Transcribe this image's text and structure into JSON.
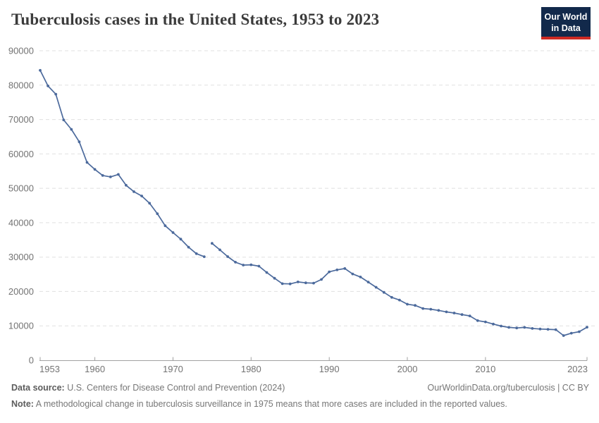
{
  "header": {
    "title": "Tuberculosis cases in the United States, 1953 to 2023",
    "logo": {
      "line1": "Our World",
      "line2": "in Data"
    }
  },
  "chart_data": {
    "type": "line",
    "title": "Tuberculosis cases in the United States, 1953 to 2023",
    "xlabel": "",
    "ylabel": "",
    "xlim": [
      1953,
      2023
    ],
    "ylim": [
      0,
      90000
    ],
    "x_ticks": [
      1953,
      1960,
      1970,
      1980,
      1990,
      2000,
      2010,
      2023
    ],
    "y_ticks": [
      0,
      10000,
      20000,
      30000,
      40000,
      50000,
      60000,
      70000,
      80000,
      90000
    ],
    "grid": "horizontal-dashed",
    "legend": "none",
    "marker": "dot",
    "gap_note": "line break between 1974 and 1975 due to surveillance change",
    "colors": {
      "line": "#4C6A9C",
      "grid": "#e0e0e0",
      "axis": "#a1a1a1",
      "tick_label": "#737373"
    },
    "series": [
      {
        "name": "Tuberculosis cases, 1953-1974 (before surveillance change)",
        "years": [
          1953,
          1954,
          1955,
          1956,
          1957,
          1958,
          1959,
          1960,
          1961,
          1962,
          1963,
          1964,
          1965,
          1966,
          1967,
          1968,
          1969,
          1970,
          1971,
          1972,
          1973,
          1974
        ],
        "values": [
          84304,
          79775,
          77368,
          69895,
          67149,
          63534,
          57535,
          55494,
          53726,
          53315,
          54042,
          50874,
          49016,
          47767,
          45647,
          42623,
          39120,
          37137,
          35217,
          32882,
          30998,
          30122
        ]
      },
      {
        "name": "Tuberculosis cases, 1975-2023 (after surveillance change)",
        "years": [
          1975,
          1976,
          1977,
          1978,
          1979,
          1980,
          1981,
          1982,
          1983,
          1984,
          1985,
          1986,
          1987,
          1988,
          1989,
          1990,
          1991,
          1992,
          1993,
          1994,
          1995,
          1996,
          1997,
          1998,
          1999,
          2000,
          2001,
          2002,
          2003,
          2004,
          2005,
          2006,
          2007,
          2008,
          2009,
          2010,
          2011,
          2012,
          2013,
          2014,
          2015,
          2016,
          2017,
          2018,
          2019,
          2020,
          2021,
          2022,
          2023
        ],
        "values": [
          33989,
          32105,
          30145,
          28521,
          27669,
          27749,
          27373,
          25520,
          23846,
          22255,
          22201,
          22768,
          22517,
          22436,
          23495,
          25701,
          26283,
          26673,
          25102,
          24206,
          22726,
          21210,
          19751,
          18286,
          17501,
          16308,
          15945,
          15055,
          14835,
          14499,
          14060,
          13728,
          13281,
          12895,
          11520,
          11159,
          10510,
          9941,
          9556,
          9398,
          9547,
          9242,
          9082,
          8998,
          8900,
          7173,
          7866,
          8300,
          9615
        ]
      }
    ]
  },
  "footer": {
    "source_label": "Data source:",
    "source_text": " U.S. Centers for Disease Control and Prevention (2024)",
    "attribution": "OurWorldinData.org/tuberculosis | CC BY",
    "note_label": "Note:",
    "note_text": " A methodological change in tuberculosis surveillance in 1975 means that more cases are included in the reported values."
  },
  "brand_colors": {
    "logo_navy": "#12294B",
    "logo_red": "#CE2A23",
    "title_text": "#3b3b3b",
    "footer_text": "#767676"
  }
}
